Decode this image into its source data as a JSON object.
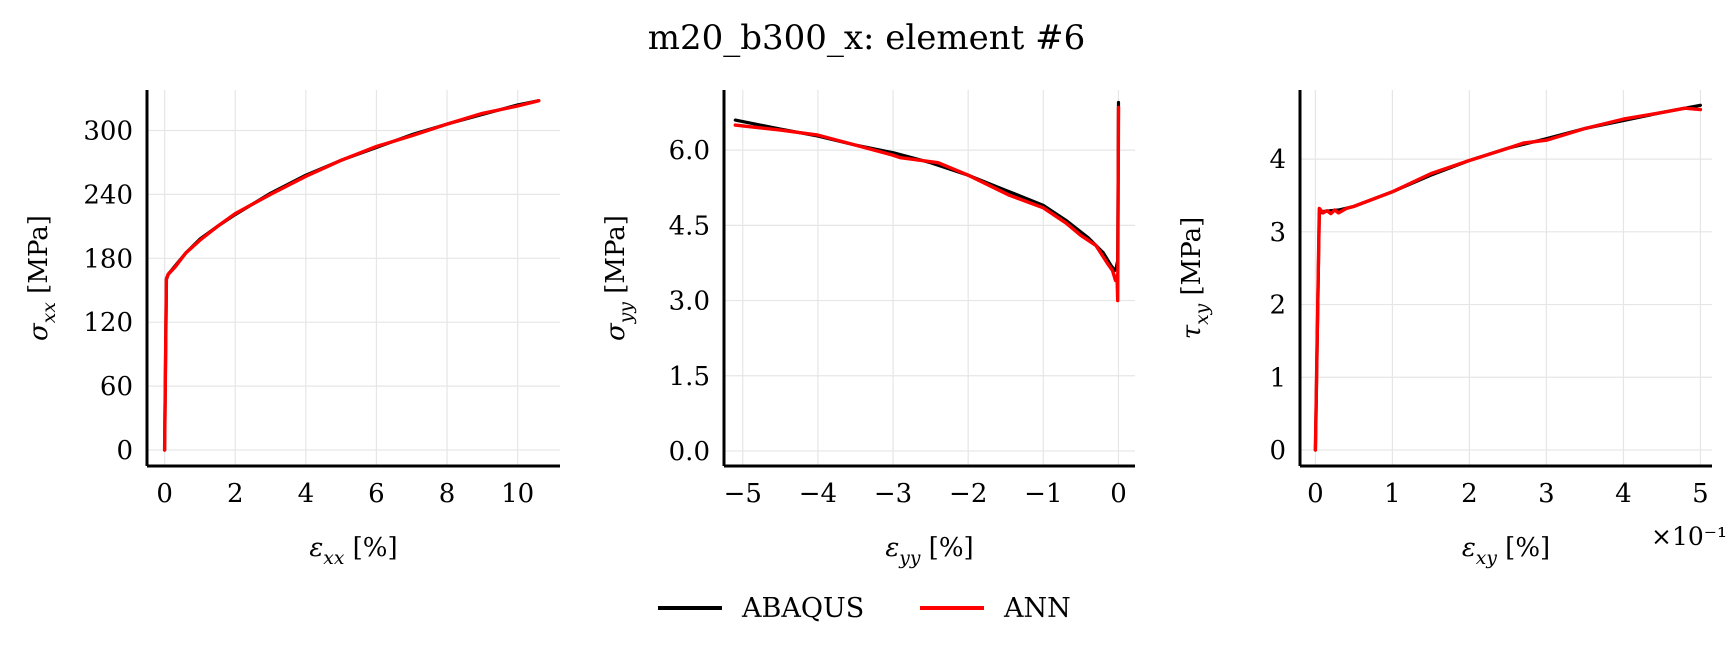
{
  "figure": {
    "title": "m20_b300_x: element #6"
  },
  "legend": {
    "items": [
      {
        "label": "ABAQUS",
        "color": "#000000"
      },
      {
        "label": "ANN",
        "color": "#ff0000"
      }
    ]
  },
  "chart_data": [
    {
      "type": "line",
      "xlabel": "ε_xx [%]",
      "ylabel": "σ_xx [MPa]",
      "xlim": [
        -0.5,
        11.2
      ],
      "ylim": [
        -15,
        338
      ],
      "xticks": [
        0,
        2,
        4,
        6,
        8,
        10
      ],
      "xtick_labels": [
        "0",
        "2",
        "4",
        "6",
        "8",
        "10"
      ],
      "yticks": [
        0,
        60,
        120,
        180,
        240,
        300
      ],
      "ytick_labels": [
        "0",
        "60",
        "120",
        "180",
        "240",
        "300"
      ],
      "grid": true,
      "series": [
        {
          "name": "ABAQUS",
          "color": "#000000",
          "x": [
            0,
            0.05,
            0.1,
            0.3,
            0.6,
            1.0,
            1.5,
            2.0,
            3.0,
            4.0,
            5.0,
            6.0,
            7.0,
            8.0,
            9.0,
            10.0,
            10.6
          ],
          "y": [
            0,
            160,
            165,
            173,
            185,
            198,
            210,
            221,
            241,
            258,
            272,
            284,
            296,
            306,
            315,
            324,
            328
          ]
        },
        {
          "name": "ANN",
          "color": "#ff0000",
          "x": [
            0,
            0.05,
            0.1,
            0.3,
            0.6,
            1.0,
            1.5,
            2.0,
            3.0,
            4.0,
            5.0,
            6.0,
            7.0,
            8.0,
            9.0,
            10.0,
            10.6
          ],
          "y": [
            0,
            161,
            165,
            172,
            185,
            197,
            210,
            222,
            240,
            257,
            272,
            285,
            295,
            306,
            316,
            323,
            328
          ]
        }
      ]
    },
    {
      "type": "line",
      "xlabel": "ε_yy [%]",
      "ylabel": "σ_yy [MPa]",
      "xlim": [
        -5.25,
        0.22
      ],
      "ylim": [
        -0.3,
        7.2
      ],
      "xticks": [
        -5,
        -4,
        -3,
        -2,
        -1,
        0
      ],
      "xtick_labels": [
        "−5",
        "−4",
        "−3",
        "−2",
        "−1",
        "0"
      ],
      "yticks": [
        0.0,
        1.5,
        3.0,
        4.5,
        6.0
      ],
      "ytick_labels": [
        "0.0",
        "1.5",
        "3.0",
        "4.5",
        "6.0"
      ],
      "grid": true,
      "series": [
        {
          "name": "ABAQUS",
          "color": "#000000",
          "x": [
            0,
            -0.01,
            -0.03,
            -0.05,
            -0.1,
            -0.2,
            -0.4,
            -0.7,
            -1.0,
            -1.5,
            -2.0,
            -2.5,
            -3.0,
            -3.5,
            -4.0,
            -4.5,
            -5.1
          ],
          "y": [
            6.95,
            3.8,
            3.65,
            3.6,
            3.7,
            3.95,
            4.25,
            4.6,
            4.9,
            5.2,
            5.5,
            5.75,
            5.95,
            6.1,
            6.28,
            6.42,
            6.6
          ]
        },
        {
          "name": "ANN",
          "color": "#ff0000",
          "x": [
            0,
            -0.01,
            -0.02,
            -0.04,
            -0.08,
            -0.15,
            -0.3,
            -0.5,
            -0.7,
            -1.0,
            -1.45,
            -2.0,
            -2.4,
            -2.9,
            -3.0,
            -3.5,
            -4.0,
            -4.5,
            -5.1
          ],
          "y": [
            6.85,
            3.0,
            3.5,
            3.4,
            3.6,
            3.75,
            4.1,
            4.3,
            4.55,
            4.85,
            5.1,
            5.5,
            5.75,
            5.85,
            5.9,
            6.1,
            6.3,
            6.4,
            6.5
          ]
        }
      ]
    },
    {
      "type": "line",
      "xlabel": "ε_xy [%]",
      "ylabel": "τ_xy [MPa]",
      "xlim": [
        -0.2,
        5.15
      ],
      "ylim": [
        -0.22,
        4.95
      ],
      "x_scale_note": "×10⁻¹",
      "xticks": [
        0,
        1,
        2,
        3,
        4,
        5
      ],
      "xtick_labels": [
        "0",
        "1",
        "2",
        "3",
        "4",
        "5"
      ],
      "yticks": [
        0,
        1,
        2,
        3,
        4
      ],
      "ytick_labels": [
        "0",
        "1",
        "2",
        "3",
        "4"
      ],
      "grid": true,
      "series": [
        {
          "name": "ABAQUS",
          "color": "#000000",
          "x": [
            0,
            0.05,
            0.1,
            0.3,
            0.5,
            1.0,
            1.5,
            2.0,
            2.5,
            3.0,
            3.5,
            4.0,
            4.5,
            5.0
          ],
          "y": [
            0,
            3.25,
            3.28,
            3.3,
            3.35,
            3.55,
            3.78,
            3.98,
            4.15,
            4.28,
            4.42,
            4.53,
            4.64,
            4.74
          ]
        },
        {
          "name": "ANN",
          "color": "#ff0000",
          "x": [
            0,
            0.05,
            0.1,
            0.15,
            0.2,
            0.25,
            0.3,
            0.4,
            0.5,
            1.0,
            1.5,
            2.0,
            2.5,
            2.7,
            3.0,
            3.5,
            4.0,
            4.5,
            4.8,
            5.0
          ],
          "y": [
            0,
            3.32,
            3.26,
            3.29,
            3.25,
            3.3,
            3.26,
            3.32,
            3.35,
            3.55,
            3.8,
            3.98,
            4.15,
            4.22,
            4.26,
            4.42,
            4.55,
            4.64,
            4.7,
            4.68
          ]
        }
      ]
    }
  ]
}
